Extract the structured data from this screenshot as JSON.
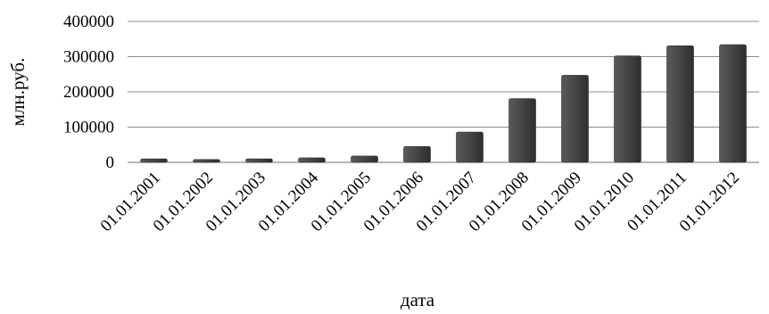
{
  "chart_data": {
    "type": "bar",
    "categories": [
      "01.01.2001",
      "01.01.2002",
      "01.01.2003",
      "01.01.2004",
      "01.01.2005",
      "01.01.2006",
      "01.01.2007",
      "01.01.2008",
      "01.01.2009",
      "01.01.2010",
      "01.01.2011",
      "01.01.2012"
    ],
    "values": [
      10000,
      8000,
      10000,
      13000,
      18000,
      45000,
      86000,
      181000,
      247000,
      302000,
      331000,
      334000
    ],
    "title": "",
    "xlabel": "дата",
    "ylabel": "млн.руб.",
    "ylim": [
      0,
      400000
    ],
    "yticks": [
      "400000",
      "300000",
      "200000",
      "100000",
      "0"
    ],
    "grid": true,
    "legend": "none",
    "colors": {
      "bar": "#4a4a4a",
      "bar_dark": "#2e2e2e",
      "grid": "#8c8c8c"
    }
  }
}
